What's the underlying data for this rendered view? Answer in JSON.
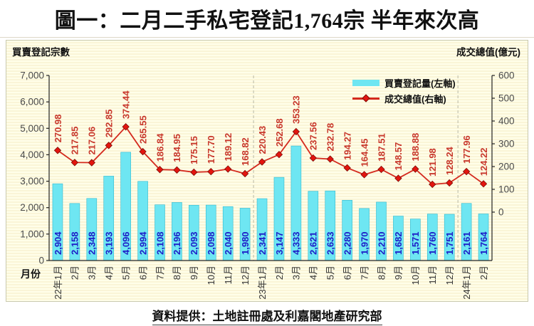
{
  "title": "圖一：二月二手私宅登記1,764宗 半年來次高",
  "footer": "資料提供：土地註冊處及利嘉閣地產研究部",
  "chart_data": {
    "type": "bar",
    "title_left_axis": "買賣登記宗數",
    "title_right_axis": "成交總值(億元)",
    "xlabel": "月份",
    "categories": [
      "22年1月",
      "2月",
      "3月",
      "4月",
      "5月",
      "6月",
      "7月",
      "8月",
      "9月",
      "10月",
      "11月",
      "12月",
      "23年1月",
      "2月",
      "3月",
      "4月",
      "5月",
      "6月",
      "7月",
      "8月",
      "9月",
      "10月",
      "11月",
      "12月",
      "24年1月",
      "2月"
    ],
    "series": [
      {
        "name": "買賣登記量(左軸)",
        "type": "bar",
        "axis": "left",
        "color": "#6ee6f2",
        "values": [
          2904,
          2158,
          2348,
          3193,
          4096,
          2994,
          2108,
          2196,
          2093,
          2098,
          2040,
          1980,
          2341,
          3147,
          4333,
          2621,
          2633,
          2280,
          1970,
          2210,
          1682,
          1571,
          1760,
          1751,
          2161,
          1764
        ]
      },
      {
        "name": "成交總值(右軸)",
        "type": "line",
        "axis": "right",
        "color": "#d42a1e",
        "marker": "diamond",
        "values": [
          270.98,
          217.85,
          217.06,
          292.85,
          374.44,
          265.55,
          186.84,
          184.95,
          175.15,
          177.7,
          189.12,
          168.82,
          220.43,
          252.68,
          353.23,
          237.56,
          232.78,
          194.27,
          164.45,
          187.51,
          148.57,
          188.88,
          121.98,
          128.24,
          177.96,
          124.22
        ]
      }
    ],
    "left_axis": {
      "min": 0,
      "max": 7000,
      "step": 1000,
      "tick_labels": [
        "7,000",
        "6,000",
        "5,000",
        "4,000",
        "3,000",
        "2,000",
        "1,000",
        "0"
      ]
    },
    "right_axis": {
      "max": 600,
      "step": 100,
      "tick_labels": [
        "600",
        "500",
        "400",
        "300",
        "200",
        "100",
        "0"
      ]
    },
    "separators_after_index": [
      11,
      23
    ],
    "grid": false,
    "legend_position": "top-right-inside",
    "colors": {
      "bar_fill": "#6ee6f2",
      "bar_stroke": "#35b9cf",
      "bar_label": "#1d1dc8",
      "line": "#d42a1e",
      "marker_fill": "#e3150f",
      "marker_stroke": "#7d0b06",
      "line_label": "#c8382c",
      "axis": "#222222",
      "tick_label": "#4a4a4a",
      "x_label": "#333333",
      "separator": "#b9b9a6"
    }
  }
}
